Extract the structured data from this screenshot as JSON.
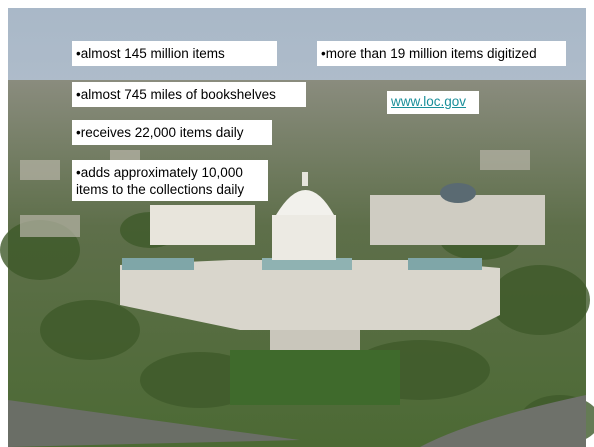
{
  "facts": [
    "•almost 145 million items",
    "•more than 19 million items digitized",
    "•almost 745 miles of bookshelves",
    "•receives 22,000 items daily",
    "•adds approximately 10,000 items to the collections daily"
  ],
  "link": "www.loc.gov"
}
